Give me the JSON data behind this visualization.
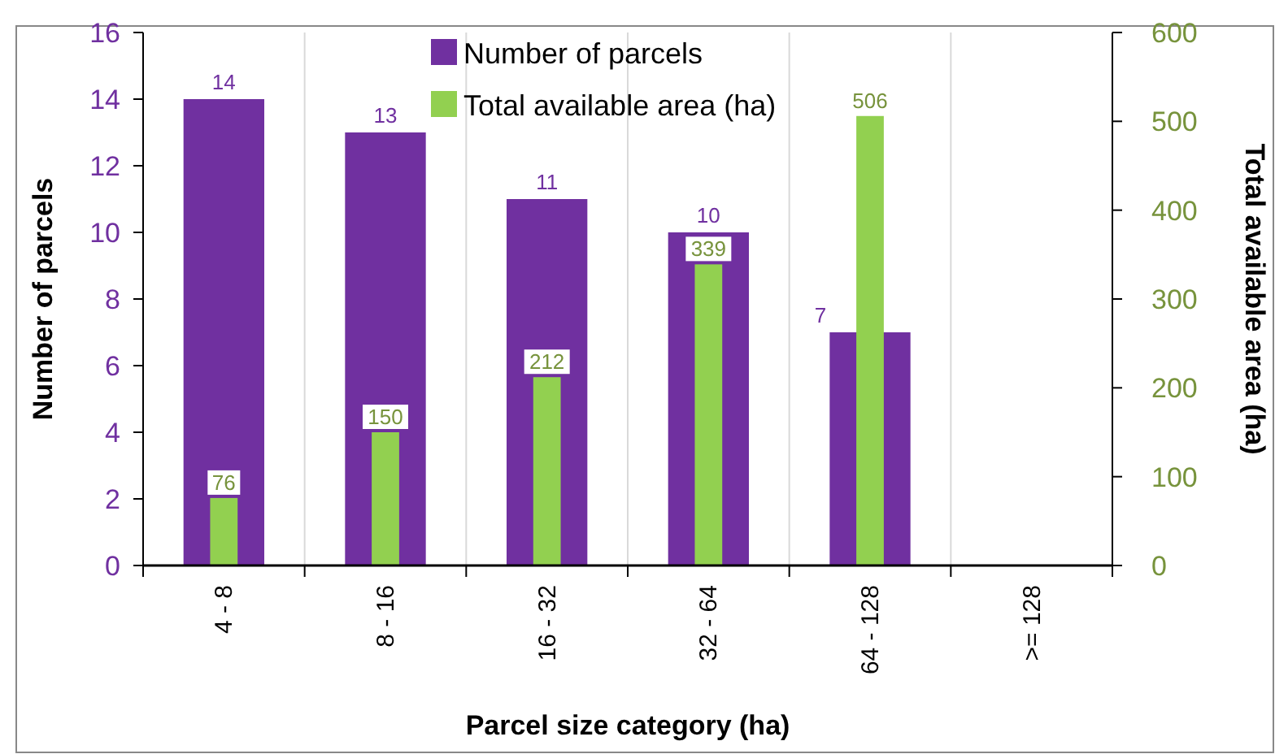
{
  "chart_data": {
    "type": "bar",
    "xlabel": "Parcel size category (ha)",
    "ylabel": "Number of parcels",
    "y2label": "Total  available area (ha)",
    "categories": [
      "4 - 8",
      "8 - 16",
      "16 - 32",
      "32 - 64",
      "64 - 128",
      ">= 128"
    ],
    "series": [
      {
        "name": "Number of parcels",
        "color": "#7030a0",
        "values": [
          14,
          13,
          11,
          10,
          7,
          null
        ]
      },
      {
        "name": "Total available area (ha)",
        "color": "#92d050",
        "axis": "y2",
        "values": [
          76,
          150,
          212,
          339,
          506,
          null
        ]
      }
    ],
    "ylim": [
      0,
      16
    ],
    "yticks": [
      0,
      2,
      4,
      6,
      8,
      10,
      12,
      14,
      16
    ],
    "y2lim": [
      0,
      600
    ],
    "y2ticks": [
      0,
      100,
      200,
      300,
      400,
      500,
      600
    ],
    "grid": "x",
    "legend": "top",
    "data_labels": true
  }
}
